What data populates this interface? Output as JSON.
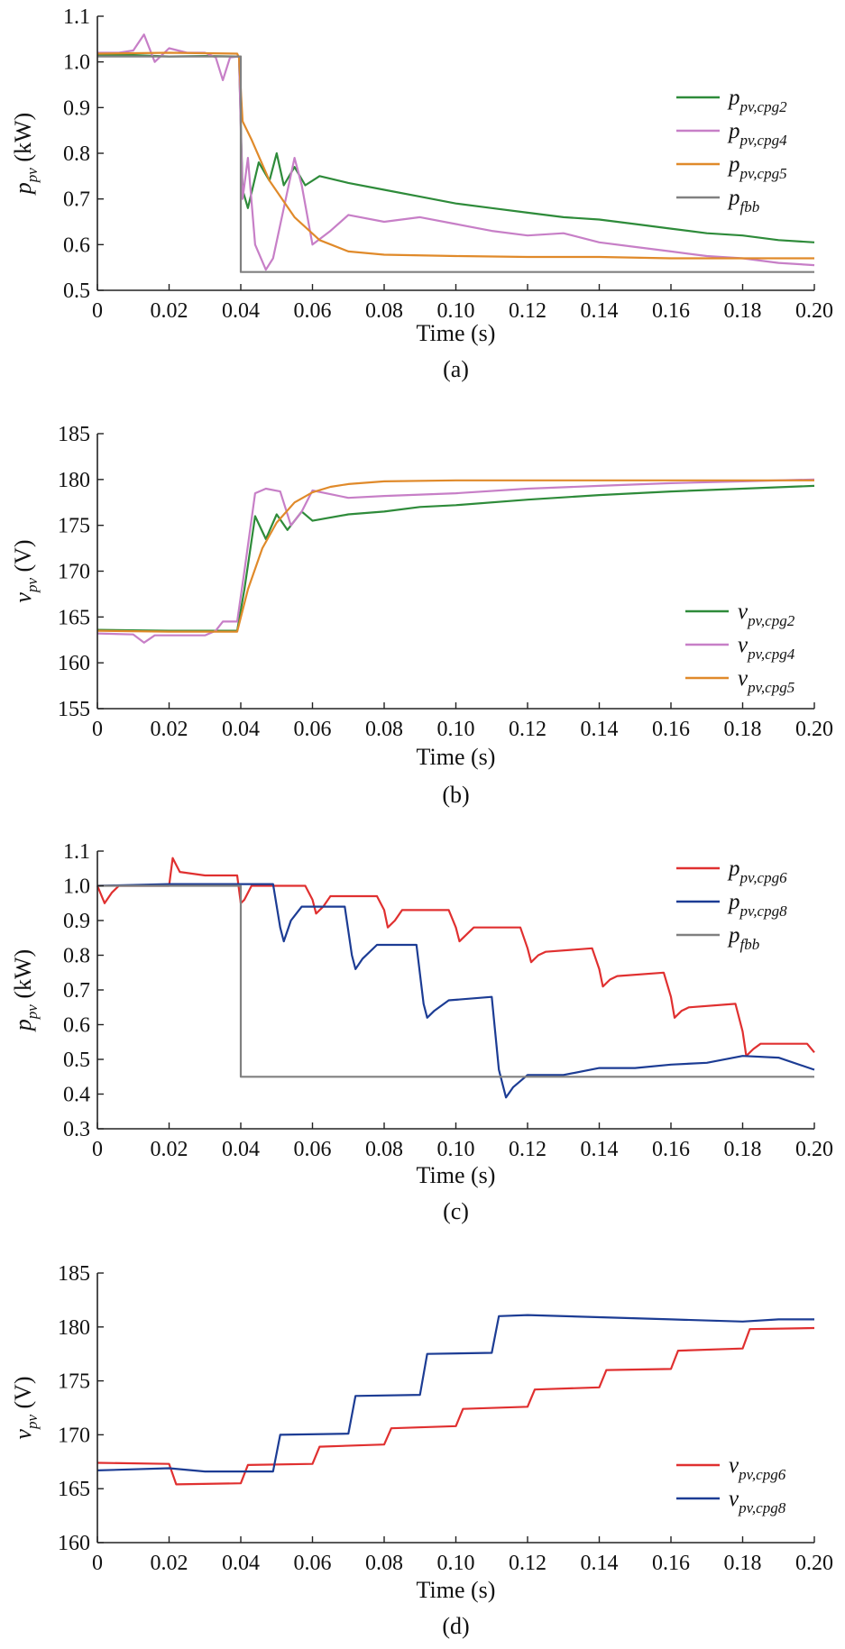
{
  "chart_data": [
    {
      "type": "line",
      "caption": "(a)",
      "xlabel": "Time (s)",
      "ylabel": {
        "base": "p",
        "sub": "pv",
        "unit": " (kW)"
      },
      "xlim": [
        0,
        0.2
      ],
      "ylim": [
        0.5,
        1.1
      ],
      "xticks": [
        "0",
        "0.02",
        "0.04",
        "0.06",
        "0.08",
        "0.10",
        "0.12",
        "0.14",
        "0.16",
        "0.18",
        "0.20"
      ],
      "yticks": [
        "0.5",
        "0.6",
        "0.7",
        "0.8",
        "0.9",
        "1.0",
        "1.1"
      ],
      "legend_position": "right",
      "series": [
        {
          "name": "p_pv,cpg2",
          "label_base": "p",
          "label_sub": "pv,cpg2",
          "color": "#2e8b3a",
          "x": [
            0,
            0.01,
            0.02,
            0.03,
            0.0395,
            0.0405,
            0.042,
            0.045,
            0.048,
            0.05,
            0.052,
            0.055,
            0.058,
            0.062,
            0.07,
            0.08,
            0.09,
            0.1,
            0.11,
            0.12,
            0.13,
            0.14,
            0.15,
            0.16,
            0.17,
            0.18,
            0.19,
            0.2
          ],
          "y": [
            1.015,
            1.015,
            1.012,
            1.013,
            1.012,
            0.72,
            0.68,
            0.78,
            0.74,
            0.8,
            0.73,
            0.77,
            0.73,
            0.75,
            0.735,
            0.72,
            0.705,
            0.69,
            0.68,
            0.67,
            0.66,
            0.655,
            0.645,
            0.635,
            0.625,
            0.62,
            0.61,
            0.605
          ]
        },
        {
          "name": "p_pv,cpg4",
          "label_base": "p",
          "label_sub": "pv,cpg4",
          "color": "#c77fc7",
          "x": [
            0,
            0.006,
            0.01,
            0.013,
            0.016,
            0.02,
            0.025,
            0.03,
            0.033,
            0.035,
            0.037,
            0.0395,
            0.0405,
            0.042,
            0.044,
            0.047,
            0.049,
            0.052,
            0.055,
            0.057,
            0.06,
            0.065,
            0.07,
            0.08,
            0.09,
            0.1,
            0.11,
            0.12,
            0.13,
            0.14,
            0.15,
            0.16,
            0.17,
            0.18,
            0.19,
            0.2
          ],
          "y": [
            1.02,
            1.02,
            1.025,
            1.06,
            1.0,
            1.03,
            1.02,
            1.02,
            1.01,
            0.96,
            1.01,
            1.012,
            0.7,
            0.79,
            0.6,
            0.545,
            0.57,
            0.68,
            0.79,
            0.73,
            0.6,
            0.63,
            0.665,
            0.65,
            0.66,
            0.645,
            0.63,
            0.62,
            0.625,
            0.605,
            0.595,
            0.585,
            0.575,
            0.57,
            0.56,
            0.555
          ]
        },
        {
          "name": "p_pv,cpg5",
          "label_base": "p",
          "label_sub": "pv,cpg5",
          "color": "#e08a2a",
          "x": [
            0,
            0.02,
            0.039,
            0.0395,
            0.0405,
            0.043,
            0.048,
            0.055,
            0.062,
            0.07,
            0.08,
            0.1,
            0.12,
            0.14,
            0.16,
            0.18,
            0.2
          ],
          "y": [
            1.018,
            1.02,
            1.018,
            1.01,
            0.87,
            0.83,
            0.74,
            0.66,
            0.61,
            0.585,
            0.578,
            0.575,
            0.573,
            0.573,
            0.57,
            0.57,
            0.57
          ]
        },
        {
          "name": "p_fbb",
          "label_base": "p",
          "label_sub": "fbb",
          "color": "#808080",
          "x": [
            0,
            0.04,
            0.04,
            0.2
          ],
          "y": [
            1.012,
            1.012,
            0.54,
            0.54
          ]
        }
      ]
    },
    {
      "type": "line",
      "caption": "(b)",
      "xlabel": "Time (s)",
      "ylabel": {
        "base": "v",
        "sub": "pv",
        "unit": " (V)"
      },
      "xlim": [
        0,
        0.2
      ],
      "ylim": [
        155,
        185
      ],
      "xticks": [
        "0",
        "0.02",
        "0.04",
        "0.06",
        "0.08",
        "0.10",
        "0.12",
        "0.14",
        "0.16",
        "0.18",
        "0.20"
      ],
      "yticks": [
        "155",
        "160",
        "165",
        "170",
        "175",
        "180",
        "185"
      ],
      "legend_position": "bottom-right",
      "series": [
        {
          "name": "v_pv,cpg2",
          "label_base": "v",
          "label_sub": "pv,cpg2",
          "color": "#2e8b3a",
          "x": [
            0,
            0.02,
            0.039,
            0.041,
            0.044,
            0.047,
            0.05,
            0.053,
            0.057,
            0.06,
            0.07,
            0.08,
            0.09,
            0.1,
            0.12,
            0.14,
            0.16,
            0.18,
            0.2
          ],
          "y": [
            163.6,
            163.5,
            163.5,
            168,
            176,
            173.5,
            176.2,
            174.5,
            176.5,
            175.5,
            176.2,
            176.5,
            177,
            177.2,
            177.8,
            178.3,
            178.7,
            179,
            179.3
          ]
        },
        {
          "name": "v_pv,cpg4",
          "label_base": "v",
          "label_sub": "pv,cpg4",
          "color": "#c77fc7",
          "x": [
            0,
            0.01,
            0.013,
            0.016,
            0.03,
            0.033,
            0.035,
            0.039,
            0.041,
            0.044,
            0.047,
            0.051,
            0.054,
            0.057,
            0.06,
            0.07,
            0.08,
            0.1,
            0.12,
            0.14,
            0.16,
            0.18,
            0.2
          ],
          "y": [
            163.2,
            163.1,
            162.2,
            163,
            163,
            163.5,
            164.5,
            164.5,
            170,
            178.5,
            179,
            178.7,
            175,
            176.5,
            178.8,
            178,
            178.2,
            178.5,
            179,
            179.3,
            179.6,
            179.8,
            180
          ]
        },
        {
          "name": "v_pv,cpg5",
          "label_base": "v",
          "label_sub": "pv,cpg5",
          "color": "#e08a2a",
          "x": [
            0,
            0.02,
            0.039,
            0.042,
            0.046,
            0.05,
            0.055,
            0.06,
            0.065,
            0.07,
            0.08,
            0.1,
            0.14,
            0.2
          ],
          "y": [
            163.5,
            163.4,
            163.4,
            168,
            172.5,
            175.3,
            177.5,
            178.6,
            179.2,
            179.5,
            179.8,
            179.9,
            179.9,
            179.9
          ]
        }
      ]
    },
    {
      "type": "line",
      "caption": "(c)",
      "xlabel": "Time (s)",
      "ylabel": {
        "base": "p",
        "sub": "pv",
        "unit": " (kW)"
      },
      "xlim": [
        0,
        0.2
      ],
      "ylim": [
        0.3,
        1.1
      ],
      "xticks": [
        "0",
        "0.02",
        "0.04",
        "0.06",
        "0.08",
        "0.10",
        "0.12",
        "0.14",
        "0.16",
        "0.18",
        "0.20"
      ],
      "yticks": [
        "0.3",
        "0.4",
        "0.5",
        "0.6",
        "0.7",
        "0.8",
        "0.9",
        "1.0",
        "1.1"
      ],
      "legend_position": "top-right",
      "series": [
        {
          "name": "p_pv,cpg6",
          "label_base": "p",
          "label_sub": "pv,cpg6",
          "color": "#e03030",
          "x": [
            0,
            0.002,
            0.004,
            0.006,
            0.02,
            0.021,
            0.023,
            0.03,
            0.039,
            0.04,
            0.041,
            0.043,
            0.05,
            0.058,
            0.06,
            0.061,
            0.063,
            0.065,
            0.078,
            0.08,
            0.081,
            0.083,
            0.085,
            0.098,
            0.1,
            0.101,
            0.103,
            0.105,
            0.118,
            0.12,
            0.121,
            0.123,
            0.125,
            0.138,
            0.14,
            0.141,
            0.143,
            0.145,
            0.158,
            0.16,
            0.161,
            0.163,
            0.165,
            0.178,
            0.18,
            0.181,
            0.183,
            0.185,
            0.198,
            0.2
          ],
          "y": [
            1.0,
            0.95,
            0.98,
            1.0,
            1.0,
            1.08,
            1.04,
            1.03,
            1.03,
            0.95,
            0.96,
            1.0,
            1.0,
            1.0,
            0.96,
            0.92,
            0.94,
            0.97,
            0.97,
            0.93,
            0.88,
            0.9,
            0.93,
            0.93,
            0.88,
            0.84,
            0.86,
            0.88,
            0.88,
            0.82,
            0.78,
            0.8,
            0.81,
            0.82,
            0.76,
            0.71,
            0.73,
            0.74,
            0.75,
            0.68,
            0.62,
            0.64,
            0.65,
            0.66,
            0.58,
            0.51,
            0.53,
            0.545,
            0.545,
            0.52
          ]
        },
        {
          "name": "p_pv,cpg8",
          "label_base": "p",
          "label_sub": "pv,cpg8",
          "color": "#1c3c94",
          "x": [
            0,
            0.02,
            0.04,
            0.049,
            0.051,
            0.052,
            0.054,
            0.057,
            0.069,
            0.071,
            0.072,
            0.074,
            0.078,
            0.089,
            0.091,
            0.092,
            0.094,
            0.098,
            0.11,
            0.112,
            0.114,
            0.116,
            0.12,
            0.13,
            0.14,
            0.15,
            0.16,
            0.17,
            0.18,
            0.19,
            0.2
          ],
          "y": [
            1.0,
            1.005,
            1.005,
            1.005,
            0.88,
            0.84,
            0.9,
            0.94,
            0.94,
            0.8,
            0.76,
            0.79,
            0.83,
            0.83,
            0.66,
            0.62,
            0.64,
            0.67,
            0.68,
            0.47,
            0.39,
            0.42,
            0.455,
            0.455,
            0.475,
            0.475,
            0.485,
            0.49,
            0.51,
            0.505,
            0.47
          ]
        },
        {
          "name": "p_fbb",
          "label_base": "p",
          "label_sub": "fbb",
          "color": "#808080",
          "x": [
            0,
            0.04,
            0.04,
            0.2
          ],
          "y": [
            1.0,
            1.0,
            0.45,
            0.45
          ]
        }
      ]
    },
    {
      "type": "line",
      "caption": "(d)",
      "xlabel": "Time (s)",
      "ylabel": {
        "base": "v",
        "sub": "pv",
        "unit": " (V)"
      },
      "xlim": [
        0,
        0.2
      ],
      "ylim": [
        160,
        185
      ],
      "xticks": [
        "0",
        "0.02",
        "0.04",
        "0.06",
        "0.08",
        "0.10",
        "0.12",
        "0.14",
        "0.16",
        "0.18",
        "0.20"
      ],
      "yticks": [
        "160",
        "165",
        "170",
        "175",
        "180",
        "185"
      ],
      "legend_position": "bottom-right",
      "series": [
        {
          "name": "v_pv,cpg6",
          "label_base": "v",
          "label_sub": "pv,cpg6",
          "color": "#e03030",
          "x": [
            0,
            0.02,
            0.022,
            0.04,
            0.042,
            0.06,
            0.062,
            0.08,
            0.082,
            0.1,
            0.102,
            0.12,
            0.122,
            0.14,
            0.142,
            0.16,
            0.162,
            0.18,
            0.182,
            0.2
          ],
          "y": [
            167.4,
            167.3,
            165.4,
            165.5,
            167.2,
            167.3,
            168.9,
            169.1,
            170.6,
            170.8,
            172.4,
            172.6,
            174.2,
            174.4,
            176,
            176.1,
            177.8,
            178,
            179.8,
            179.9
          ]
        },
        {
          "name": "v_pv,cpg8",
          "label_base": "v",
          "label_sub": "pv,cpg8",
          "color": "#1c3c94",
          "x": [
            0,
            0.02,
            0.03,
            0.049,
            0.051,
            0.07,
            0.072,
            0.09,
            0.092,
            0.11,
            0.112,
            0.12,
            0.14,
            0.16,
            0.18,
            0.19,
            0.2
          ],
          "y": [
            166.7,
            166.9,
            166.6,
            166.6,
            170,
            170.1,
            173.6,
            173.7,
            177.5,
            177.6,
            181,
            181.1,
            180.9,
            180.7,
            180.5,
            180.7,
            180.7
          ]
        }
      ]
    }
  ]
}
